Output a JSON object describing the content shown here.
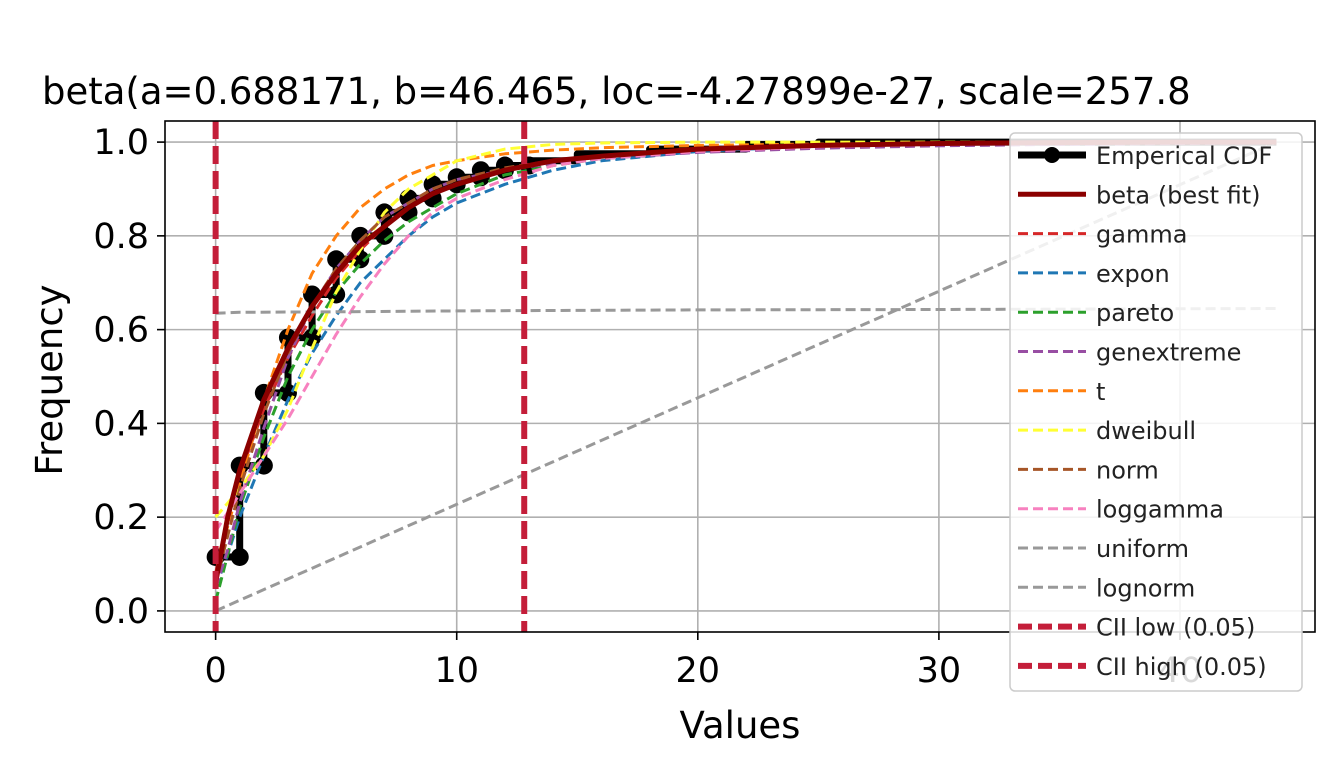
{
  "chart_data": {
    "type": "line",
    "title": "beta(a=0.688171, b=46.465, loc=-4.27899e-27, scale=257.8",
    "xlabel": "Values",
    "ylabel": "Frequency",
    "xlim": [
      -2.1,
      45.6
    ],
    "ylim": [
      -0.045,
      1.045
    ],
    "grid": true,
    "legend_position": "right",
    "x_ticks": [
      "0",
      "10",
      "20",
      "30",
      "40"
    ],
    "y_ticks": [
      "0.0",
      "0.2",
      "0.4",
      "0.6",
      "0.8",
      "1.0"
    ],
    "empirical": {
      "name": "Emperical CDF",
      "color": "#000000",
      "points": [
        [
          0,
          0.115
        ],
        [
          1,
          0.115
        ],
        [
          1,
          0.31
        ],
        [
          2,
          0.31
        ],
        [
          2,
          0.465
        ],
        [
          3,
          0.465
        ],
        [
          3,
          0.583
        ],
        [
          4,
          0.583
        ],
        [
          4,
          0.675
        ],
        [
          5,
          0.675
        ],
        [
          5,
          0.75
        ],
        [
          6,
          0.75
        ],
        [
          6,
          0.8
        ],
        [
          7,
          0.8
        ],
        [
          7,
          0.85
        ],
        [
          8,
          0.85
        ],
        [
          8,
          0.88
        ],
        [
          9,
          0.88
        ],
        [
          9,
          0.91
        ],
        [
          10,
          0.91
        ],
        [
          10,
          0.925
        ],
        [
          11,
          0.925
        ],
        [
          11,
          0.94
        ],
        [
          12,
          0.94
        ],
        [
          12,
          0.95
        ],
        [
          13,
          0.95
        ],
        [
          13,
          0.96
        ],
        [
          15,
          0.96
        ],
        [
          15,
          0.975
        ],
        [
          18,
          0.975
        ],
        [
          18,
          0.985
        ],
        [
          22,
          0.985
        ],
        [
          22,
          0.995
        ],
        [
          25,
          0.995
        ],
        [
          25,
          1.0
        ],
        [
          44,
          1.0
        ]
      ],
      "markers": [
        [
          0,
          0.115
        ],
        [
          1,
          0.115
        ],
        [
          1,
          0.31
        ],
        [
          2,
          0.31
        ],
        [
          2,
          0.465
        ],
        [
          3,
          0.465
        ],
        [
          3,
          0.583
        ],
        [
          4,
          0.583
        ],
        [
          4,
          0.675
        ],
        [
          5,
          0.675
        ],
        [
          5,
          0.75
        ],
        [
          6,
          0.75
        ],
        [
          6,
          0.8
        ],
        [
          7,
          0.8
        ],
        [
          7,
          0.85
        ],
        [
          8,
          0.85
        ],
        [
          8,
          0.88
        ],
        [
          9,
          0.88
        ],
        [
          9,
          0.91
        ],
        [
          10,
          0.91
        ],
        [
          10,
          0.925
        ],
        [
          11,
          0.925
        ],
        [
          11,
          0.94
        ],
        [
          12,
          0.94
        ],
        [
          12,
          0.95
        ],
        [
          13,
          0.95
        ]
      ]
    },
    "series": [
      {
        "name": "beta (best fit)",
        "color": "#8b0000",
        "style": "solid",
        "width": 5,
        "x": [
          0,
          0.5,
          1,
          2,
          3,
          4,
          5,
          6,
          7,
          8,
          9,
          10,
          12,
          14,
          16,
          20,
          25,
          30,
          35,
          40,
          44
        ],
        "y": [
          0.06,
          0.2,
          0.3,
          0.45,
          0.56,
          0.65,
          0.72,
          0.78,
          0.82,
          0.86,
          0.89,
          0.91,
          0.94,
          0.96,
          0.97,
          0.985,
          0.993,
          0.997,
          0.999,
          1.0,
          1.0
        ]
      },
      {
        "name": "gamma",
        "color": "#d62728",
        "style": "dashed",
        "width": 3,
        "x": [
          0,
          0.5,
          1,
          2,
          3,
          4,
          5,
          6,
          7,
          8,
          9,
          10,
          12,
          14,
          16,
          20,
          25,
          30,
          35,
          40,
          44
        ],
        "y": [
          0.08,
          0.2,
          0.29,
          0.43,
          0.54,
          0.63,
          0.71,
          0.77,
          0.82,
          0.86,
          0.89,
          0.91,
          0.94,
          0.96,
          0.97,
          0.985,
          0.994,
          0.998,
          0.999,
          1.0,
          1.0
        ]
      },
      {
        "name": "expon",
        "color": "#1f77b4",
        "style": "dashed",
        "width": 3,
        "x": [
          0,
          0.5,
          1,
          2,
          3,
          4,
          5,
          6,
          7,
          8,
          9,
          10,
          12,
          14,
          16,
          20,
          25,
          30,
          35,
          40,
          44
        ],
        "y": [
          0.05,
          0.12,
          0.2,
          0.33,
          0.45,
          0.55,
          0.63,
          0.7,
          0.75,
          0.8,
          0.84,
          0.87,
          0.91,
          0.94,
          0.96,
          0.98,
          0.992,
          0.997,
          0.999,
          1.0,
          1.0
        ]
      },
      {
        "name": "pareto",
        "color": "#2ca02c",
        "style": "dashed",
        "width": 3,
        "x": [
          0,
          0.5,
          1,
          2,
          3,
          4,
          5,
          6,
          7,
          8,
          9,
          10,
          12,
          14,
          16,
          20,
          25,
          30,
          35,
          40,
          44
        ],
        "y": [
          0.02,
          0.12,
          0.22,
          0.37,
          0.5,
          0.6,
          0.68,
          0.74,
          0.79,
          0.83,
          0.86,
          0.89,
          0.93,
          0.95,
          0.965,
          0.98,
          0.99,
          0.995,
          0.997,
          0.998,
          0.999
        ]
      },
      {
        "name": "genextreme",
        "color": "#984ea3",
        "style": "dashed",
        "width": 3,
        "x": [
          0,
          0.5,
          1,
          2,
          3,
          4,
          5,
          6,
          7,
          8,
          9,
          10,
          12,
          14,
          16,
          20,
          25,
          30,
          35,
          40,
          44
        ],
        "y": [
          0.05,
          0.13,
          0.23,
          0.39,
          0.54,
          0.65,
          0.73,
          0.79,
          0.84,
          0.87,
          0.9,
          0.92,
          0.94,
          0.955,
          0.965,
          0.978,
          0.987,
          0.992,
          0.995,
          0.997,
          0.998
        ]
      },
      {
        "name": "t",
        "color": "#ff7f0e",
        "style": "dashed",
        "width": 3,
        "x": [
          0,
          0.5,
          1,
          2,
          3,
          4,
          5,
          6,
          7,
          8,
          9,
          10,
          12,
          14,
          16,
          20,
          25,
          30,
          35,
          40,
          44
        ],
        "y": [
          0.1,
          0.18,
          0.27,
          0.45,
          0.6,
          0.72,
          0.8,
          0.86,
          0.9,
          0.93,
          0.95,
          0.96,
          0.975,
          0.983,
          0.988,
          0.993,
          0.996,
          0.997,
          0.998,
          0.999,
          0.999
        ]
      },
      {
        "name": "dweibull",
        "color": "#ffff33",
        "style": "dashed",
        "width": 3,
        "x": [
          0,
          0.5,
          1,
          2,
          3,
          4,
          5,
          6,
          7,
          8,
          9,
          10,
          12,
          14,
          16,
          20,
          25,
          30,
          35,
          40,
          44
        ],
        "y": [
          0.2,
          0.23,
          0.26,
          0.33,
          0.43,
          0.56,
          0.68,
          0.77,
          0.85,
          0.9,
          0.93,
          0.96,
          0.985,
          0.995,
          0.998,
          1.0,
          1.0,
          1.0,
          1.0,
          1.0,
          1.0
        ]
      },
      {
        "name": "norm",
        "color": "#a65628",
        "style": "dashed",
        "width": 3,
        "x": [
          0,
          0.5,
          1,
          2,
          3,
          4,
          5,
          6,
          7,
          8,
          9,
          10,
          12,
          14,
          16,
          20,
          25,
          30,
          35,
          40,
          44
        ],
        "y": [
          0.06,
          0.16,
          0.26,
          0.42,
          0.55,
          0.65,
          0.73,
          0.79,
          0.84,
          0.87,
          0.9,
          0.92,
          0.945,
          0.96,
          0.97,
          0.985,
          0.994,
          0.998,
          0.999,
          1.0,
          1.0
        ]
      },
      {
        "name": "loggamma",
        "color": "#f781bf",
        "style": "dashed",
        "width": 3,
        "x": [
          0,
          0.5,
          1,
          2,
          3,
          4,
          5,
          6,
          7,
          8,
          9,
          10,
          12,
          14,
          16,
          20,
          25,
          30,
          35,
          40,
          44
        ],
        "y": [
          0.17,
          0.21,
          0.25,
          0.33,
          0.41,
          0.5,
          0.59,
          0.67,
          0.74,
          0.8,
          0.85,
          0.88,
          0.92,
          0.95,
          0.965,
          0.98,
          0.99,
          0.995,
          0.998,
          0.999,
          1.0
        ]
      },
      {
        "name": "uniform",
        "color": "#999999",
        "style": "dashed",
        "width": 3,
        "x": [
          0,
          44
        ],
        "y": [
          0.0,
          1.0
        ]
      },
      {
        "name": "lognorm",
        "color": "#999999",
        "style": "dashed",
        "width": 3,
        "x": [
          0,
          1,
          5,
          10,
          20,
          30,
          44
        ],
        "y": [
          0.635,
          0.637,
          0.638,
          0.64,
          0.642,
          0.643,
          0.645
        ]
      }
    ],
    "vlines": [
      {
        "name": "CII low (0.05)",
        "color": "#c41e3a",
        "x": 0
      },
      {
        "name": "CII high (0.05)",
        "color": "#c41e3a",
        "x": 12.8
      }
    ]
  }
}
